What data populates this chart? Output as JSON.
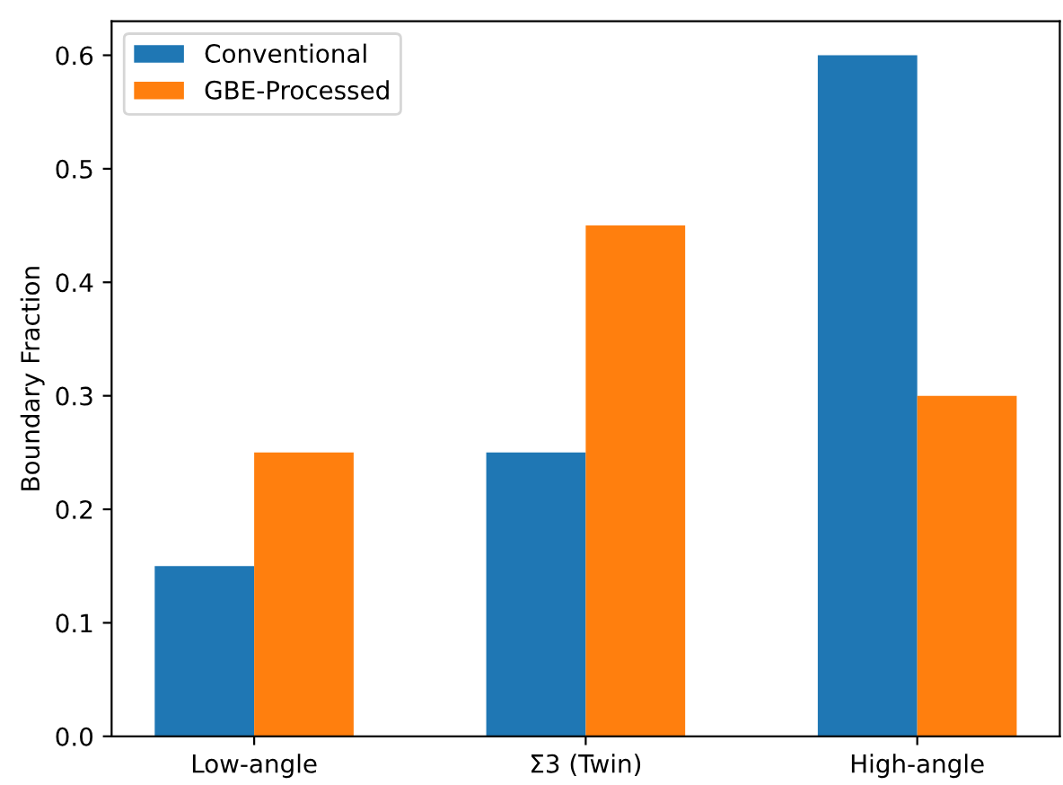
{
  "chart_data": {
    "type": "bar",
    "ylabel": "Boundary Fraction",
    "categories": [
      "Low-angle",
      "Σ3 (Twin)",
      "High-angle"
    ],
    "series": [
      {
        "name": "Conventional",
        "color": "#1f77b4",
        "values": [
          0.15,
          0.25,
          0.6
        ]
      },
      {
        "name": "GBE-Processed",
        "color": "#ff7f0e",
        "values": [
          0.25,
          0.45,
          0.3
        ]
      }
    ],
    "ylim": [
      0,
      0.63
    ],
    "yticks": [
      {
        "value": 0,
        "label": "0.0"
      },
      0.1,
      0.2,
      0.3,
      0.4,
      0.5,
      0.6
    ],
    "legend": "top left",
    "grid": false
  }
}
